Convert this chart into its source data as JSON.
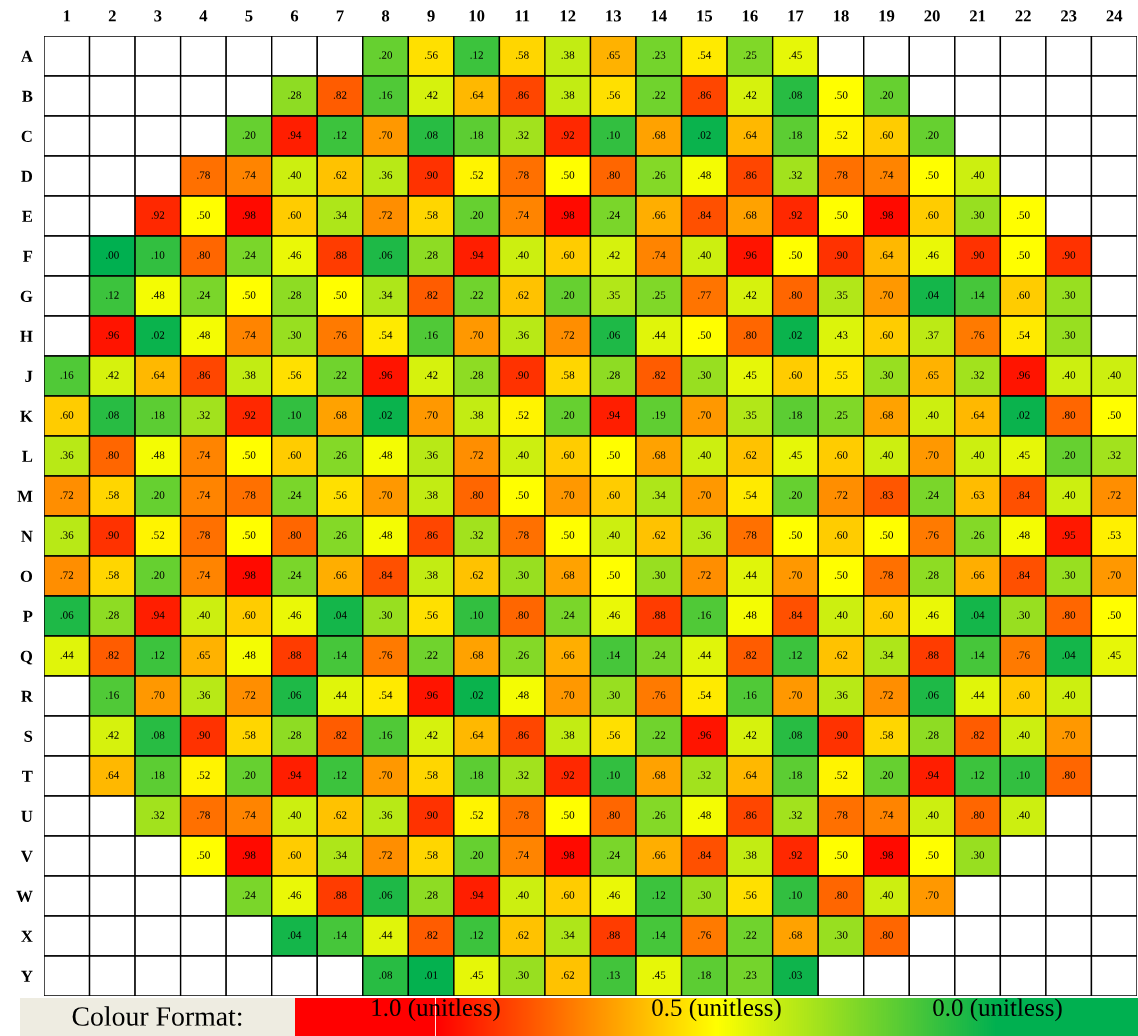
{
  "chart_data": {
    "type": "heatmap",
    "categories": [
      "1",
      "2",
      "3",
      "4",
      "5",
      "6",
      "7",
      "8",
      "9",
      "10",
      "11",
      "12",
      "13",
      "14",
      "15",
      "16",
      "17",
      "18",
      "19",
      "20",
      "21",
      "22",
      "23",
      "24"
    ],
    "y_categories": [
      "A",
      "B",
      "C",
      "D",
      "E",
      "F",
      "G",
      "H",
      "J",
      "K",
      "L",
      "M",
      "N",
      "O",
      "P",
      "Q",
      "R",
      "S",
      "T",
      "U",
      "V",
      "W",
      "X",
      "Y"
    ],
    "cells": [
      [
        null,
        null,
        null,
        null,
        null,
        null,
        null,
        0.2,
        0.56,
        0.12,
        0.58,
        0.38,
        0.65,
        0.23,
        0.54,
        0.25,
        0.45,
        null,
        null,
        null,
        null,
        null,
        null,
        null
      ],
      [
        null,
        null,
        null,
        null,
        null,
        0.28,
        0.82,
        0.16,
        0.42,
        0.64,
        0.86,
        0.38,
        0.56,
        0.22,
        0.86,
        0.42,
        0.08,
        0.5,
        0.2,
        null,
        null,
        null,
        null,
        null
      ],
      [
        null,
        null,
        null,
        null,
        0.2,
        0.94,
        0.12,
        0.7,
        0.08,
        0.18,
        0.32,
        0.92,
        0.1,
        0.68,
        0.02,
        0.64,
        0.18,
        0.52,
        0.6,
        0.2,
        null,
        null,
        null,
        null
      ],
      [
        null,
        null,
        null,
        0.78,
        0.74,
        0.4,
        0.62,
        0.36,
        0.9,
        0.52,
        0.78,
        0.5,
        0.8,
        0.26,
        0.48,
        0.86,
        0.32,
        0.78,
        0.74,
        0.5,
        0.4,
        null,
        null,
        null
      ],
      [
        null,
        null,
        0.92,
        0.5,
        0.98,
        0.6,
        0.34,
        0.72,
        0.58,
        0.2,
        0.74,
        0.98,
        0.24,
        0.66,
        0.84,
        0.68,
        0.92,
        0.5,
        0.98,
        0.6,
        0.3,
        0.5,
        null,
        null
      ],
      [
        null,
        0.0,
        0.1,
        0.8,
        0.24,
        0.46,
        0.88,
        0.06,
        0.28,
        0.94,
        0.4,
        0.6,
        0.42,
        0.74,
        0.4,
        0.96,
        0.5,
        0.9,
        0.64,
        0.46,
        0.9,
        0.5,
        0.9,
        null
      ],
      [
        null,
        0.12,
        0.48,
        0.24,
        0.5,
        0.28,
        0.5,
        0.34,
        0.82,
        0.22,
        0.62,
        0.2,
        0.35,
        0.25,
        0.77,
        0.42,
        0.8,
        0.35,
        0.7,
        0.04,
        0.14,
        0.6,
        0.3,
        null
      ],
      [
        null,
        0.96,
        0.02,
        0.48,
        0.74,
        0.3,
        0.76,
        0.54,
        0.16,
        0.7,
        0.36,
        0.72,
        0.06,
        0.44,
        0.5,
        0.8,
        0.02,
        0.43,
        0.6,
        0.37,
        0.76,
        0.54,
        0.3,
        null
      ],
      [
        0.16,
        0.42,
        0.64,
        0.86,
        0.38,
        0.56,
        0.22,
        0.96,
        0.42,
        0.28,
        0.9,
        0.58,
        0.28,
        0.82,
        0.3,
        0.45,
        0.6,
        0.55,
        0.3,
        0.65,
        0.32,
        0.96,
        0.4,
        0.4
      ],
      [
        0.6,
        0.08,
        0.18,
        0.32,
        0.92,
        0.1,
        0.68,
        0.02,
        0.7,
        0.38,
        0.52,
        0.2,
        0.94,
        0.19,
        0.7,
        0.35,
        0.18,
        0.25,
        0.68,
        0.4,
        0.64,
        0.02,
        0.8,
        0.5
      ],
      [
        0.36,
        0.8,
        0.48,
        0.74,
        0.5,
        0.6,
        0.26,
        0.48,
        0.36,
        0.72,
        0.4,
        0.6,
        0.5,
        0.68,
        0.4,
        0.62,
        0.45,
        0.6,
        0.4,
        0.7,
        0.4,
        0.45,
        0.2,
        0.32
      ],
      [
        0.72,
        0.58,
        0.2,
        0.74,
        0.78,
        0.24,
        0.56,
        0.7,
        0.38,
        0.8,
        0.5,
        0.7,
        0.6,
        0.34,
        0.7,
        0.54,
        0.2,
        0.72,
        0.83,
        0.24,
        0.63,
        0.84,
        0.4,
        0.72
      ],
      [
        0.36,
        0.9,
        0.52,
        0.78,
        0.5,
        0.8,
        0.26,
        0.48,
        0.86,
        0.32,
        0.78,
        0.5,
        0.4,
        0.62,
        0.36,
        0.78,
        0.5,
        0.6,
        0.5,
        0.76,
        0.26,
        0.48,
        0.95,
        0.53
      ],
      [
        0.72,
        0.58,
        0.2,
        0.74,
        0.98,
        0.24,
        0.66,
        0.84,
        0.38,
        0.62,
        0.3,
        0.68,
        0.5,
        0.3,
        0.72,
        0.44,
        0.7,
        0.5,
        0.78,
        0.28,
        0.66,
        0.84,
        0.3,
        0.7
      ],
      [
        0.06,
        0.28,
        0.94,
        0.4,
        0.6,
        0.46,
        0.04,
        0.3,
        0.56,
        0.1,
        0.8,
        0.24,
        0.46,
        0.88,
        0.16,
        0.48,
        0.84,
        0.4,
        0.6,
        0.46,
        0.04,
        0.3,
        0.8,
        0.5
      ],
      [
        0.44,
        0.82,
        0.12,
        0.65,
        0.48,
        0.88,
        0.14,
        0.76,
        0.22,
        0.68,
        0.26,
        0.66,
        0.14,
        0.24,
        0.44,
        0.82,
        0.12,
        0.62,
        0.34,
        0.88,
        0.14,
        0.76,
        0.04,
        0.45
      ],
      [
        null,
        0.16,
        0.7,
        0.36,
        0.72,
        0.06,
        0.44,
        0.54,
        0.96,
        0.02,
        0.48,
        0.7,
        0.3,
        0.76,
        0.54,
        0.16,
        0.7,
        0.36,
        0.72,
        0.06,
        0.44,
        0.6,
        0.4,
        null
      ],
      [
        null,
        0.42,
        0.08,
        0.9,
        0.58,
        0.28,
        0.82,
        0.16,
        0.42,
        0.64,
        0.86,
        0.38,
        0.56,
        0.22,
        0.96,
        0.42,
        0.08,
        0.9,
        0.58,
        0.28,
        0.82,
        0.4,
        0.7,
        null
      ],
      [
        null,
        0.64,
        0.18,
        0.52,
        0.2,
        0.94,
        0.12,
        0.7,
        0.58,
        0.18,
        0.32,
        0.92,
        0.1,
        0.68,
        0.32,
        0.64,
        0.18,
        0.52,
        0.2,
        0.94,
        0.12,
        0.1,
        0.8,
        null
      ],
      [
        null,
        null,
        0.32,
        0.78,
        0.74,
        0.4,
        0.62,
        0.36,
        0.9,
        0.52,
        0.78,
        0.5,
        0.8,
        0.26,
        0.48,
        0.86,
        0.32,
        0.78,
        0.74,
        0.4,
        0.8,
        0.4,
        null,
        null
      ],
      [
        null,
        null,
        null,
        0.5,
        0.98,
        0.6,
        0.34,
        0.72,
        0.58,
        0.2,
        0.74,
        0.98,
        0.24,
        0.66,
        0.84,
        0.38,
        0.92,
        0.5,
        0.98,
        0.5,
        0.3,
        null,
        null,
        null
      ],
      [
        null,
        null,
        null,
        null,
        0.24,
        0.46,
        0.88,
        0.06,
        0.28,
        0.94,
        0.4,
        0.6,
        0.46,
        0.12,
        0.3,
        0.56,
        0.1,
        0.8,
        0.4,
        0.7,
        null,
        null,
        null,
        null
      ],
      [
        null,
        null,
        null,
        null,
        null,
        0.04,
        0.14,
        0.44,
        0.82,
        0.12,
        0.62,
        0.34,
        0.88,
        0.14,
        0.76,
        0.22,
        0.68,
        0.3,
        0.8,
        null,
        null,
        null,
        null,
        null
      ],
      [
        null,
        null,
        null,
        null,
        null,
        null,
        null,
        0.08,
        0.01,
        0.45,
        0.3,
        0.62,
        0.13,
        0.45,
        0.18,
        0.23,
        0.03,
        null,
        null,
        null,
        null,
        null,
        null,
        null
      ]
    ],
    "cell_labels": [
      [
        null,
        null,
        null,
        null,
        null,
        null,
        null,
        ".20",
        ".56",
        ".12",
        ".58",
        ".38",
        ".65",
        ".23",
        ".54",
        ".25",
        ".45",
        null,
        null,
        null,
        null,
        null,
        null,
        null
      ],
      [
        null,
        null,
        null,
        null,
        null,
        ".28",
        ".82",
        ".16",
        ".42",
        ".64",
        ".86",
        ".38",
        ".56",
        ".22",
        ".86",
        ".42",
        ".08",
        ".50",
        ".20",
        null,
        null,
        null,
        null,
        null
      ],
      [
        null,
        null,
        null,
        null,
        ".20",
        ".94",
        ".12",
        ".70",
        ".08",
        ".18",
        ".32",
        ".92",
        ".10",
        ".68",
        ".02",
        ".64",
        ".18",
        ".52",
        ".60",
        ".20",
        null,
        null,
        null,
        null
      ],
      [
        null,
        null,
        null,
        ".78",
        ".74",
        ".40",
        ".62",
        ".36",
        ".90",
        ".52",
        ".78",
        ".50",
        ".80",
        ".26",
        ".48",
        ".86",
        ".32",
        ".78",
        ".74",
        ".50",
        ".40",
        null,
        null,
        null
      ],
      [
        null,
        null,
        ".92",
        ".50",
        ".98",
        ".60",
        ".34",
        ".72",
        ".58",
        ".20",
        ".74",
        ".98",
        ".24",
        ".66",
        ".84",
        ".68",
        ".92",
        ".50",
        ".98",
        ".60",
        ".30",
        ".50",
        null,
        null
      ],
      [
        null,
        ".00",
        ".10",
        ".80",
        ".24",
        ".46",
        ".88",
        ".06",
        ".28",
        ".94",
        ".40",
        ".60",
        ".42",
        ".74",
        ".40",
        ".96",
        ".50",
        ".90",
        ".64",
        ".46",
        ".90",
        ".50",
        ".90",
        null
      ],
      [
        null,
        ".12",
        ".48",
        ".24",
        ".50",
        ".28",
        ".50",
        ".34",
        ".82",
        ".22",
        ".62",
        ".20",
        ".35",
        ".25",
        ".77",
        ".42",
        ".80",
        ".35",
        ".70",
        ".04",
        ".14",
        ".60",
        ".30",
        null
      ],
      [
        null,
        ".96",
        ".02",
        ".48",
        ".74",
        ".30",
        ".76",
        ".54",
        ".16",
        ".70",
        ".36",
        ".72",
        ".06",
        ".44",
        ".50",
        ".80",
        ".02",
        ".43",
        ".60",
        ".37",
        ".76",
        ".54",
        ".30",
        null
      ],
      [
        ".16",
        ".42",
        ".64",
        ".86",
        ".38",
        ".56",
        ".22",
        ".96",
        ".42",
        ".28",
        ".90",
        ".58",
        ".28",
        ".82",
        ".30",
        ".45",
        ".60",
        ".55",
        ".30",
        ".65",
        ".32",
        ".96",
        ".40",
        ".40"
      ],
      [
        ".60",
        ".08",
        ".18",
        ".32",
        ".92",
        ".10",
        ".68",
        ".02",
        ".70",
        ".38",
        ".52",
        ".20",
        ".94",
        ".19",
        ".70",
        ".35",
        ".18",
        ".25",
        ".68",
        ".40",
        ".64",
        ".02",
        ".80",
        ".50"
      ],
      [
        ".36",
        ".80",
        ".48",
        ".74",
        ".50",
        ".60",
        ".26",
        ".48",
        ".36",
        ".72",
        ".40",
        ".60",
        ".50",
        ".68",
        ".40",
        ".62",
        ".45",
        ".60",
        ".40",
        ".70",
        ".40",
        ".45",
        ".20",
        ".32"
      ],
      [
        ".72",
        ".58",
        ".20",
        ".74",
        ".78",
        ".24",
        ".56",
        ".70",
        ".38",
        ".80",
        ".50",
        ".70",
        ".60",
        ".34",
        ".70",
        ".54",
        ".20",
        ".72",
        ".83",
        ".24",
        ".63",
        ".84",
        ".40",
        ".72"
      ],
      [
        ".36",
        ".90",
        ".52",
        ".78",
        ".50",
        ".80",
        ".26",
        ".48",
        ".86",
        ".32",
        ".78",
        ".50",
        ".40",
        ".62",
        ".36",
        ".78",
        ".50",
        ".60",
        ".50",
        ".76",
        ".26",
        ".48",
        ".95",
        ".53"
      ],
      [
        ".72",
        ".58",
        ".20",
        ".74",
        ".98",
        ".24",
        ".66",
        ".84",
        ".38",
        ".62",
        ".30",
        ".68",
        ".50",
        ".30",
        ".72",
        ".44",
        ".70",
        ".50",
        ".78",
        ".28",
        ".66",
        ".84",
        ".30",
        ".70"
      ],
      [
        ".06",
        ".28",
        ".94",
        ".40",
        ".60",
        ".46",
        ".04",
        ".30",
        ".56",
        ".10",
        ".80",
        ".24",
        ".46",
        ".88",
        ".16",
        ".48",
        ".84",
        ".40",
        ".60",
        ".46",
        ".04",
        ".30",
        ".80",
        ".50"
      ],
      [
        ".44",
        ".82",
        ".12",
        ".65",
        ".48",
        ".88",
        ".14",
        ".76",
        ".22",
        ".68",
        ".26",
        ".66",
        ".14",
        ".24",
        ".44",
        ".82",
        ".12",
        ".62",
        ".34",
        ".88",
        ".14",
        ".76",
        ".04",
        ".45"
      ],
      [
        null,
        ".16",
        ".70",
        ".36",
        ".72",
        ".06",
        ".44",
        ".54",
        ".96",
        ".02",
        ".48",
        ".70",
        ".30",
        ".76",
        ".54",
        ".16",
        ".70",
        ".36",
        ".72",
        ".06",
        ".44",
        ".60",
        ".40",
        null
      ],
      [
        null,
        ".42",
        ".08",
        ".90",
        ".58",
        ".28",
        ".82",
        ".16",
        ".42",
        ".64",
        ".86",
        ".38",
        ".56",
        ".22",
        ".96",
        ".42",
        ".08",
        ".90",
        ".58",
        ".28",
        ".82",
        ".40",
        ".70",
        null
      ],
      [
        null,
        ".64",
        ".18",
        ".52",
        ".20",
        ".94",
        ".12",
        ".70",
        ".58",
        ".18",
        ".32",
        ".92",
        ".10",
        ".68",
        ".32",
        ".64",
        ".18",
        ".52",
        ".20",
        ".94",
        ".12",
        ".10",
        ".80",
        null
      ],
      [
        null,
        null,
        ".32",
        ".78",
        ".74",
        ".40",
        ".62",
        ".36",
        ".90",
        ".52",
        ".78",
        ".50",
        ".80",
        ".26",
        ".48",
        ".86",
        ".32",
        ".78",
        ".74",
        ".40",
        ".80",
        ".40",
        null,
        null
      ],
      [
        null,
        null,
        null,
        ".50",
        ".98",
        ".60",
        ".34",
        ".72",
        ".58",
        ".20",
        ".74",
        ".98",
        ".24",
        ".66",
        ".84",
        ".38",
        ".92",
        ".50",
        ".98",
        ".50",
        ".30",
        null,
        null,
        null
      ],
      [
        null,
        null,
        null,
        null,
        ".24",
        ".46",
        ".88",
        ".06",
        ".28",
        ".94",
        ".40",
        ".60",
        ".46",
        ".12",
        ".30",
        ".56",
        ".10",
        ".80",
        ".40",
        ".70",
        null,
        null,
        null,
        null
      ],
      [
        null,
        null,
        null,
        null,
        null,
        ".04",
        ".14",
        ".44",
        ".82",
        ".12",
        ".62",
        ".34",
        ".88",
        ".14",
        ".76",
        ".22",
        ".68",
        ".30",
        ".80",
        null,
        null,
        null,
        null,
        null
      ],
      [
        null,
        null,
        null,
        null,
        null,
        null,
        null,
        ".08",
        ".01",
        ".45",
        ".30",
        ".62",
        ".13",
        ".45",
        ".18",
        ".23",
        ".03",
        null,
        null,
        null,
        null,
        null,
        null,
        null
      ]
    ],
    "clim": [
      0,
      1
    ],
    "colors": [
      "#00b050",
      "#ffff00",
      "#ff0000"
    ],
    "clabel": "Colour Format:",
    "cticks": [
      {
        "value": 1.0,
        "label": "1.0 (unitless)"
      },
      {
        "value": 0.5,
        "label": "0.5 (unitless)"
      },
      {
        "value": 0.0,
        "label": "0.0 (unitless)"
      }
    ]
  }
}
